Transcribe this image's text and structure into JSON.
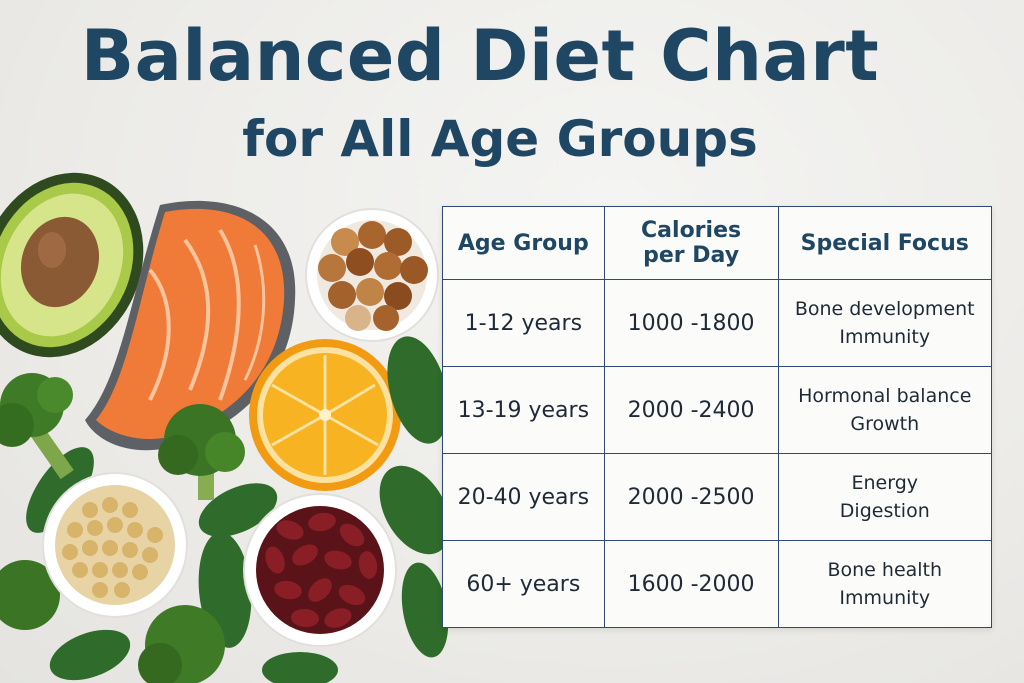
{
  "header": {
    "title": "Balanced Diet Chart",
    "subtitle": "for All Age Groups"
  },
  "colors": {
    "title": "#1f4763",
    "table_border": "#2e4a74"
  },
  "table": {
    "headers": {
      "age": "Age Group",
      "calories_line1": "Calories",
      "calories_line2": "per Day",
      "focus": "Special Focus"
    },
    "rows": [
      {
        "age": "1-12 years",
        "calories": "1000 -1800",
        "focus1": "Bone development",
        "focus2": "Immunity"
      },
      {
        "age": "13-19 years",
        "calories": "2000 -2400",
        "focus1": "Hormonal balance",
        "focus2": "Growth"
      },
      {
        "age": "20-40 years",
        "calories": "2000 -2500",
        "focus1": "Energy",
        "focus2": "Digestion"
      },
      {
        "age": "60+ years",
        "calories": "1600 -2000",
        "focus1": "Bone health",
        "focus2": "Immunity"
      }
    ]
  }
}
